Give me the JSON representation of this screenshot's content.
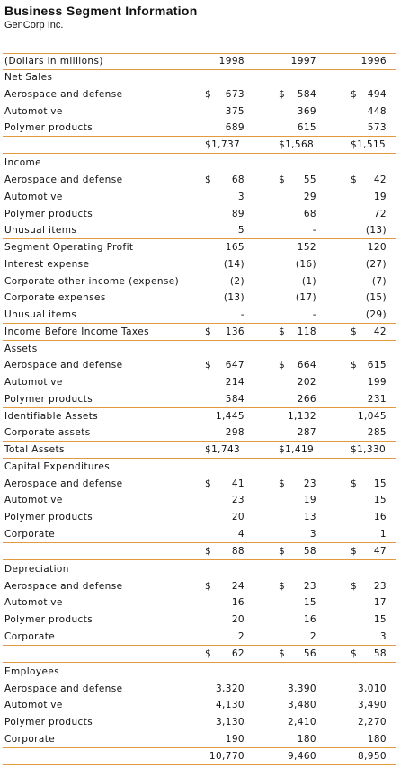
{
  "title": "Business Segment Information",
  "subtitle": "GenCorp Inc.",
  "table": {
    "header": [
      "(Dollars in millions)",
      "1998",
      "1997",
      "1996"
    ],
    "rows": [
      {
        "label": "Net Sales"
      },
      {
        "label": "Aerospace and defense",
        "cells": [
          [
            "$",
            "673"
          ],
          [
            "$",
            "584"
          ],
          [
            "$",
            "494"
          ]
        ]
      },
      {
        "label": "Automotive",
        "cells": [
          "375",
          "369",
          "448"
        ]
      },
      {
        "label": "Polymer products",
        "cells": [
          "689",
          "615",
          "573"
        ]
      },
      {
        "cells": [
          "$1,737",
          "$1,568",
          "$1,515"
        ]
      },
      {
        "label": "Income"
      },
      {
        "label": "Aerospace and defense",
        "cells": [
          [
            "$",
            "68"
          ],
          [
            "$",
            "55"
          ],
          [
            "$",
            "42"
          ]
        ]
      },
      {
        "label": "Automotive",
        "cells": [
          "3",
          "29",
          "19"
        ]
      },
      {
        "label": "Polymer products",
        "cells": [
          "89",
          "68",
          "72"
        ]
      },
      {
        "label": "Unusual items",
        "cells": [
          "5",
          "-",
          "(13)"
        ]
      },
      {
        "label": "Segment Operating Profit",
        "cells": [
          "165",
          "152",
          "120"
        ]
      },
      {
        "label": "Interest expense",
        "cells": [
          "(14)",
          "(16)",
          "(27)"
        ]
      },
      {
        "label": "Corporate other income (expense)",
        "cells": [
          "(2)",
          "(1)",
          "(7)"
        ]
      },
      {
        "label": "Corporate expenses",
        "cells": [
          "(13)",
          "(17)",
          "(15)"
        ]
      },
      {
        "label": "Unusual items",
        "cells": [
          "-",
          "-",
          "(29)"
        ]
      },
      {
        "label": "Income Before Income Taxes",
        "cells": [
          [
            "$",
            "136"
          ],
          [
            "$",
            "118"
          ],
          [
            "$",
            "42"
          ]
        ]
      },
      {
        "label": "Assets"
      },
      {
        "label": "Aerospace and defense",
        "cells": [
          [
            "$",
            "647"
          ],
          [
            "$",
            "664"
          ],
          [
            "$",
            "615"
          ]
        ]
      },
      {
        "label": "Automotive",
        "cells": [
          "214",
          "202",
          "199"
        ]
      },
      {
        "label": "Polymer products",
        "cells": [
          "584",
          "266",
          "231"
        ]
      },
      {
        "label": "Identifiable Assets",
        "cells": [
          "1,445",
          "1,132",
          "1,045"
        ]
      },
      {
        "label": "Corporate assets",
        "cells": [
          "298",
          "287",
          "285"
        ]
      },
      {
        "label": "Total Assets",
        "cells": [
          "$1,743",
          "$1,419",
          "$1,330"
        ]
      },
      {
        "label": "Capital Expenditures"
      },
      {
        "label": "Aerospace and defense",
        "cells": [
          [
            "$",
            "41"
          ],
          [
            "$",
            "23"
          ],
          [
            "$",
            "15"
          ]
        ]
      },
      {
        "label": "Automotive",
        "cells": [
          "23",
          "19",
          "15"
        ]
      },
      {
        "label": "Polymer products",
        "cells": [
          "20",
          "13",
          "16"
        ]
      },
      {
        "label": "Corporate",
        "cells": [
          "4",
          "3",
          "1"
        ]
      },
      {
        "cells": [
          [
            "$",
            "88"
          ],
          [
            "$",
            "58"
          ],
          [
            "$",
            "47"
          ]
        ]
      },
      {
        "label": "Depreciation"
      },
      {
        "label": "Aerospace and defense",
        "cells": [
          [
            "$",
            "24"
          ],
          [
            "$",
            "23"
          ],
          [
            "$",
            "23"
          ]
        ]
      },
      {
        "label": "Automotive",
        "cells": [
          "16",
          "15",
          "17"
        ]
      },
      {
        "label": "Polymer products",
        "cells": [
          "20",
          "16",
          "15"
        ]
      },
      {
        "label": "Corporate",
        "cells": [
          "2",
          "2",
          "3"
        ]
      },
      {
        "cells": [
          [
            "$",
            "62"
          ],
          [
            "$",
            "56"
          ],
          [
            "$",
            "58"
          ]
        ]
      },
      {
        "label": "Employees"
      },
      {
        "label": "Aerospace and defense",
        "cells": [
          "3,320",
          "3,390",
          "3,010"
        ]
      },
      {
        "label": "Automotive",
        "cells": [
          "4,130",
          "3,480",
          "3,490"
        ]
      },
      {
        "label": "Polymer products",
        "cells": [
          "3,130",
          "2,410",
          "2,270"
        ]
      },
      {
        "label": "Corporate",
        "cells": [
          "190",
          "180",
          "180"
        ]
      },
      {
        "cells": [
          "10,770",
          "9,460",
          "8,950"
        ]
      }
    ]
  }
}
